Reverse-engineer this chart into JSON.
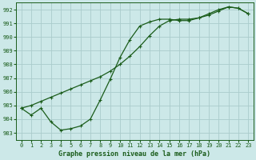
{
  "title": "Graphe pression niveau de la mer (hPa)",
  "background_color": "#cce8e8",
  "grid_color": "#aacccc",
  "line_color": "#1a5c1a",
  "xlim": [
    -0.5,
    23.5
  ],
  "ylim": [
    982.5,
    992.5
  ],
  "yticks": [
    983,
    984,
    985,
    986,
    987,
    988,
    989,
    990,
    991,
    992
  ],
  "xticks": [
    0,
    1,
    2,
    3,
    4,
    5,
    6,
    7,
    8,
    9,
    10,
    11,
    12,
    13,
    14,
    15,
    16,
    17,
    18,
    19,
    20,
    21,
    22,
    23
  ],
  "line_upper_x": [
    0,
    1,
    2,
    3,
    4,
    5,
    6,
    7,
    8,
    9,
    10,
    11,
    12,
    13,
    14,
    15,
    16,
    17,
    18,
    19,
    20,
    21,
    22,
    23
  ],
  "line_upper_y": [
    984.8,
    985.0,
    985.3,
    985.6,
    985.9,
    986.2,
    986.5,
    986.8,
    987.1,
    987.5,
    988.0,
    988.6,
    989.3,
    990.1,
    990.8,
    991.2,
    991.3,
    991.3,
    991.4,
    991.6,
    991.9,
    992.2,
    992.1,
    991.7
  ],
  "line_lower_x": [
    0,
    1,
    2,
    3,
    4,
    5,
    6,
    7,
    8,
    9,
    10,
    11,
    12,
    13,
    14,
    15,
    16,
    17,
    18,
    19,
    20,
    21,
    22,
    23
  ],
  "line_lower_y": [
    984.8,
    984.3,
    984.8,
    983.8,
    983.2,
    983.3,
    983.5,
    984.0,
    985.4,
    986.9,
    988.5,
    989.8,
    990.8,
    991.1,
    991.3,
    991.3,
    991.2,
    991.2,
    991.4,
    991.7,
    992.0,
    992.2,
    992.1,
    991.7
  ]
}
